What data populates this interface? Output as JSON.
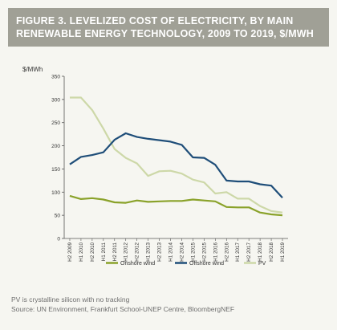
{
  "figure": {
    "title": "FIGURE 3. LEVELIZED COST OF ELECTRICITY, BY MAIN RENEWABLE ENERGY TECHNOLOGY, 2009 TO 2019, $/MWH",
    "note": "PV is crystalline silicon with no tracking",
    "source": "Source: UN Environment, Frankfurt School-UNEP Centre, BloombergNEF"
  },
  "colors": {
    "title_bg": "#a0a096",
    "onshore": "#8aa22a",
    "offshore": "#1f4e79",
    "pv": "#cdd8a8"
  },
  "chart_data": {
    "type": "line",
    "ylabel": "$/MWh",
    "ylim": [
      0,
      350
    ],
    "yticks": [
      0,
      50,
      100,
      150,
      200,
      250,
      300,
      350
    ],
    "grid": false,
    "legend": "bottom",
    "x": [
      "H2 2009",
      "H1 2010",
      "H2 2010",
      "H1 2011",
      "H2 2011",
      "H1 2012",
      "H2 2012",
      "H1 2013",
      "H2 2013",
      "H1 2014",
      "H2 2014",
      "H1 2015",
      "H2 2015",
      "H1 2016",
      "H2 2016",
      "H1 2017",
      "H2 2017",
      "H1 2018",
      "H2 2018",
      "H1 2019"
    ],
    "series": [
      {
        "name": "Onshore wind",
        "color_key": "onshore",
        "values": [
          92,
          85,
          87,
          84,
          78,
          77,
          82,
          79,
          80,
          81,
          81,
          84,
          82,
          80,
          68,
          67,
          67,
          56,
          52,
          50
        ]
      },
      {
        "name": "Offshore wind",
        "color_key": "offshore",
        "values": [
          160,
          176,
          180,
          186,
          213,
          227,
          219,
          215,
          212,
          209,
          202,
          175,
          174,
          159,
          125,
          123,
          123,
          117,
          114,
          88
        ]
      },
      {
        "name": "PV",
        "color_key": "pv",
        "values": [
          304,
          304,
          277,
          237,
          193,
          174,
          162,
          135,
          145,
          146,
          140,
          127,
          121,
          97,
          100,
          86,
          86,
          70,
          59,
          56
        ]
      }
    ]
  }
}
